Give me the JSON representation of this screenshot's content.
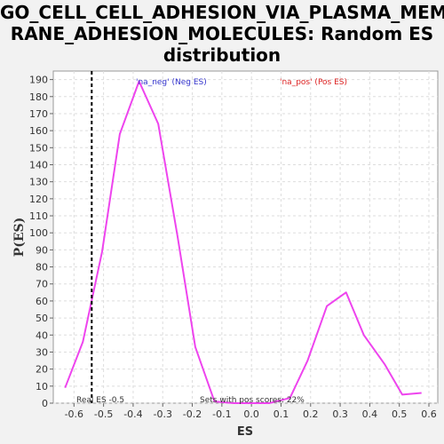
{
  "title_lines": [
    "GO_CELL_CELL_ADHESION_VIA_PLASMA_MEMB",
    "RANE_ADHESION_MOLECULES: Random ES",
    "distribution"
  ],
  "colors": {
    "curve": "#ee44ee",
    "neg_label": "#3333cc",
    "pos_label": "#dd2222",
    "real_es_line": "#000000",
    "grid": "#dddddd"
  },
  "chart_data": {
    "type": "line",
    "title": "GO_CELL_CELL_ADHESION_VIA_PLASMA_MEMBRANE_ADHESION_MOLECULES: Random ES distribution",
    "xlabel": "ES",
    "ylabel": "P(ES)",
    "xlim": [
      -0.67,
      0.63
    ],
    "ylim": [
      0,
      195
    ],
    "x_ticks": [
      -0.6,
      -0.5,
      -0.4,
      -0.3,
      -0.2,
      -0.1,
      0.0,
      0.1,
      0.2,
      0.3,
      0.4,
      0.5,
      0.6
    ],
    "x_tick_labels": [
      "-0.6",
      "-0.5",
      "-0.4",
      "-0.3",
      "-0.2",
      "-0.1",
      "0.0",
      "0.1",
      "0.2",
      "0.3",
      "0.4",
      "0.5",
      "0.6"
    ],
    "y_ticks": [
      0,
      10,
      20,
      30,
      40,
      50,
      60,
      70,
      80,
      90,
      100,
      110,
      120,
      130,
      140,
      150,
      160,
      170,
      180,
      190
    ],
    "y_tick_labels": [
      "0",
      "10",
      "20",
      "30",
      "40",
      "50",
      "60",
      "70",
      "80",
      "90",
      "100",
      "110",
      "120",
      "130",
      "140",
      "150",
      "160",
      "170",
      "180",
      "190"
    ],
    "grid": true,
    "series": [
      {
        "x": [
          -0.63,
          -0.57,
          -0.505,
          -0.445,
          -0.38,
          -0.315,
          -0.25,
          -0.19,
          -0.125,
          -0.06,
          0.0,
          0.06,
          0.13,
          0.19,
          0.255,
          0.32,
          0.38,
          0.45,
          0.51,
          0.575
        ],
        "y": [
          9,
          36,
          89,
          158,
          189,
          164,
          98,
          33,
          1,
          0,
          0,
          0,
          3,
          25,
          57,
          65,
          40,
          23,
          5,
          6
        ]
      }
    ],
    "real_es": -0.54,
    "annotations": {
      "neg": "'na_neg' (Neg ES)",
      "pos": "'na_pos' (Pos ES)",
      "real_es": "Real ES -0.5",
      "pos_scores": "Sets with pos scores: 22%"
    }
  }
}
